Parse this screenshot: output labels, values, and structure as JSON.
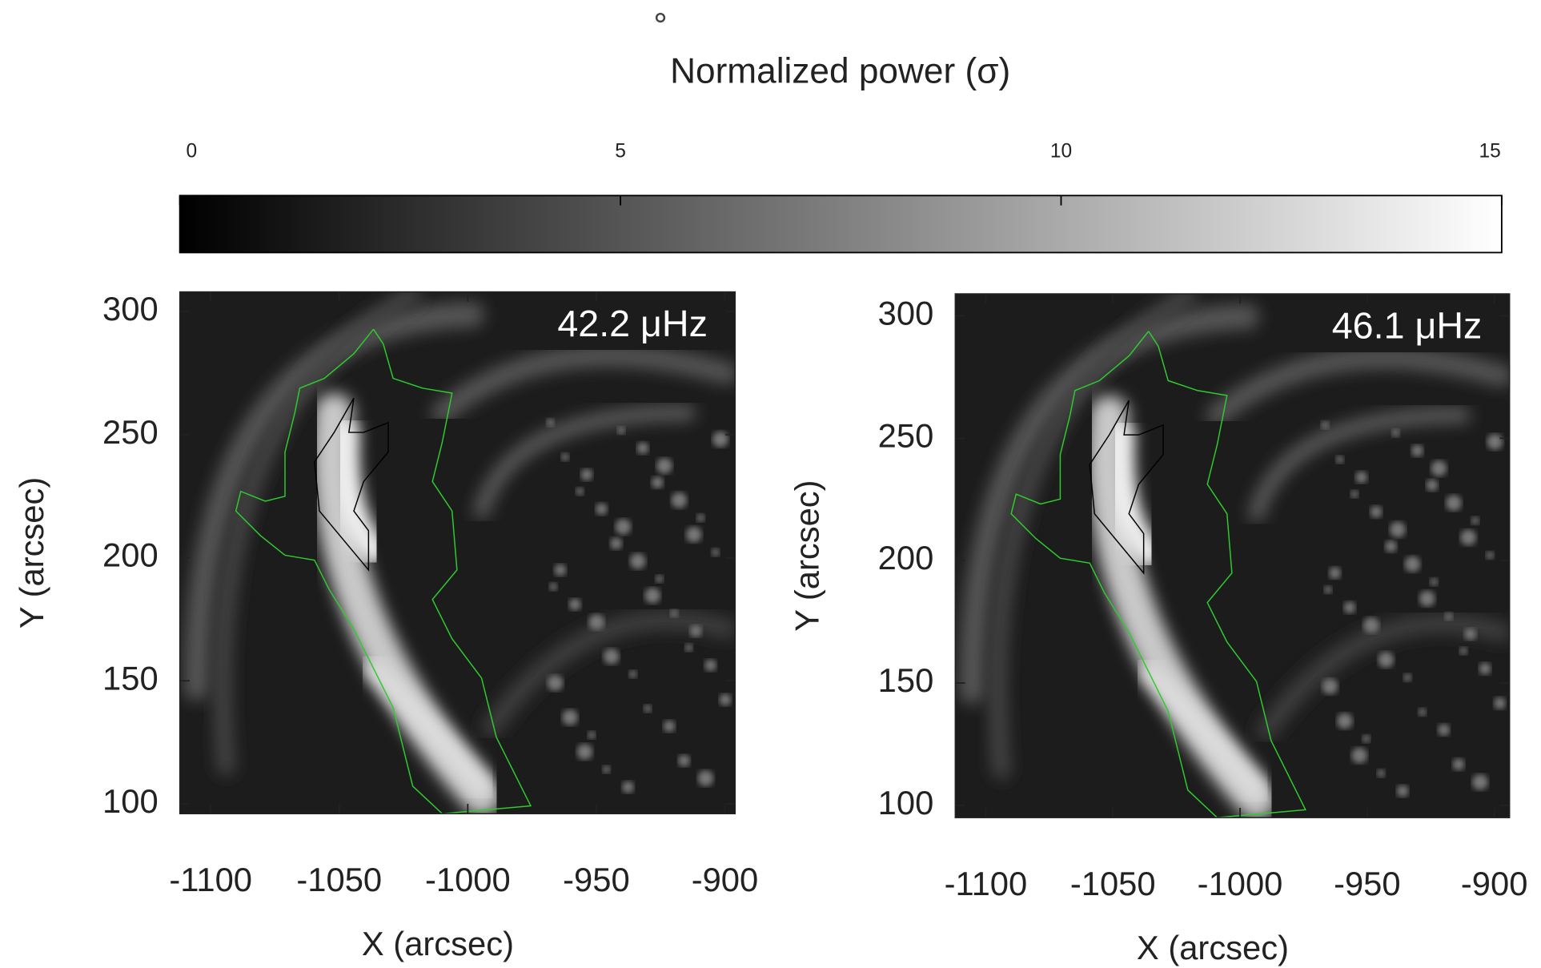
{
  "chart_data": [
    {
      "type": "colorbar",
      "title": "Normalized power (σ)",
      "xlim": [
        0,
        15
      ],
      "xticks": [
        0,
        5,
        10,
        15
      ],
      "colormap": "gray"
    },
    {
      "type": "image",
      "title": "42.2 μHz",
      "xlabel": "X (arcsec)",
      "ylabel": "Y (arcsec)",
      "xlim": [
        -1112,
        -896
      ],
      "ylim": [
        96,
        308
      ],
      "xticks": [
        -1100,
        -1050,
        -1000,
        -950,
        -900
      ],
      "yticks": [
        100,
        150,
        200,
        250,
        300
      ]
    },
    {
      "type": "image",
      "title": "46.1 μHz",
      "xlabel": "X (arcsec)",
      "ylabel": "Y (arcsec)",
      "xlim": [
        -1112,
        -894
      ],
      "ylim": [
        95,
        309
      ],
      "xticks": [
        -1100,
        -1050,
        -1000,
        -950,
        -900
      ],
      "yticks": [
        100,
        150,
        200,
        250,
        300
      ]
    }
  ]
}
